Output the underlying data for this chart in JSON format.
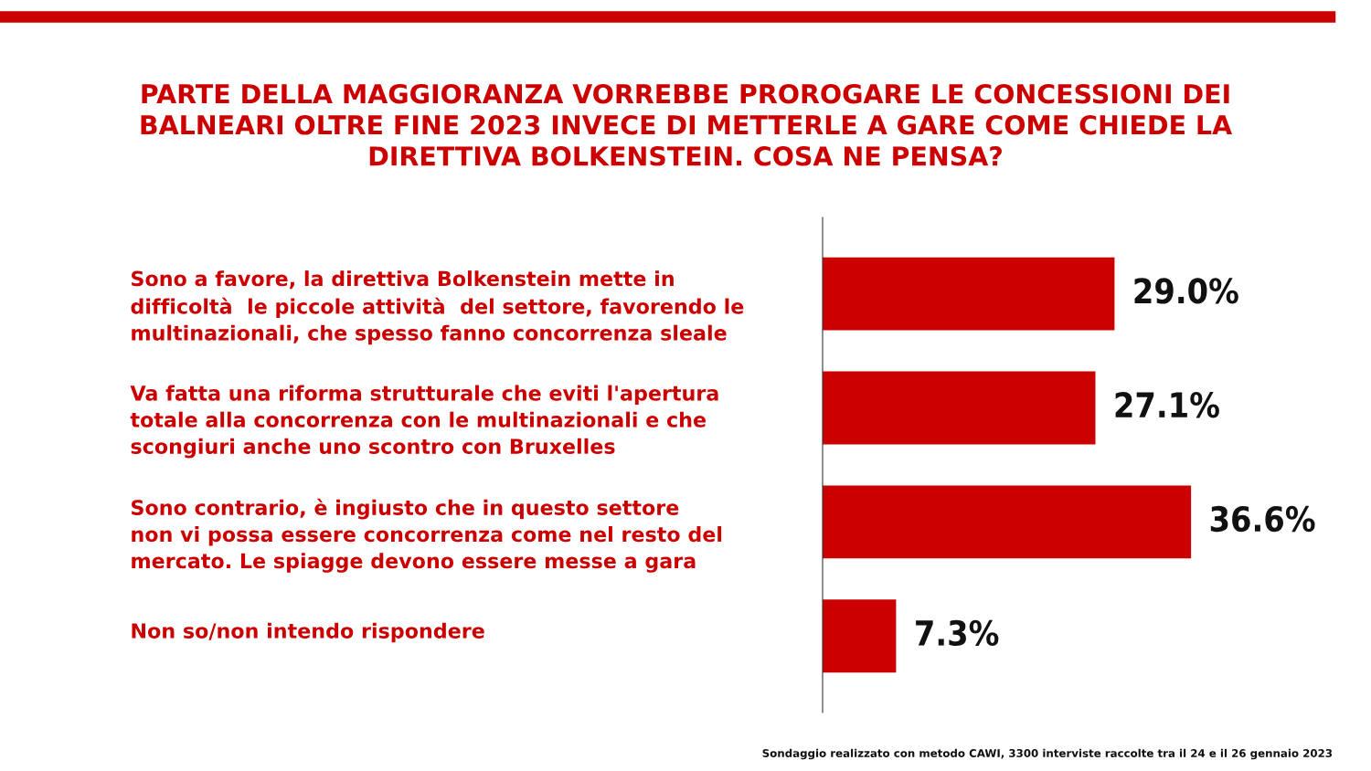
{
  "chart_data": {
    "type": "bar",
    "orientation": "horizontal",
    "title": "PARTE DELLA MAGGIORANZA VORREBBE PROROGARE LE CONCESSIONI DEI\nBALNEARI OLTRE FINE 2023 INVECE DI METTERLE A GARE COME CHIEDE LA\nDIRETTIVA BOLKENSTEIN. COSA NE PENSA?",
    "categories": [
      "Sono a favore, la direttiva Bolkenstein mette in\ndifficoltà  le piccole attività  del settore, favorendo le\nmultinazionali, che spesso fanno concorrenza sleale",
      "Va fatta una riforma strutturale che eviti l'apertura\ntotale alla concorrenza con le multinazionali e che\nscongiuri anche uno scontro con Bruxelles",
      "Sono contrario, è ingiusto che in questo settore\nnon vi possa essere concorrenza come nel resto del\nmercato. Le spiagge devono essere messe a gara",
      "Non so/non intendo rispondere"
    ],
    "values": [
      29.0,
      27.1,
      36.6,
      7.3
    ],
    "value_labels": [
      "29.0%",
      "27.1%",
      "36.6%",
      "7.3%"
    ],
    "color": "#cc0000",
    "annotations": [
      "Sondaggio realizzato con metodo CAWI, 3300 interviste raccolte tra il 24 e il 26 gennaio 2023"
    ],
    "legend": false
  }
}
